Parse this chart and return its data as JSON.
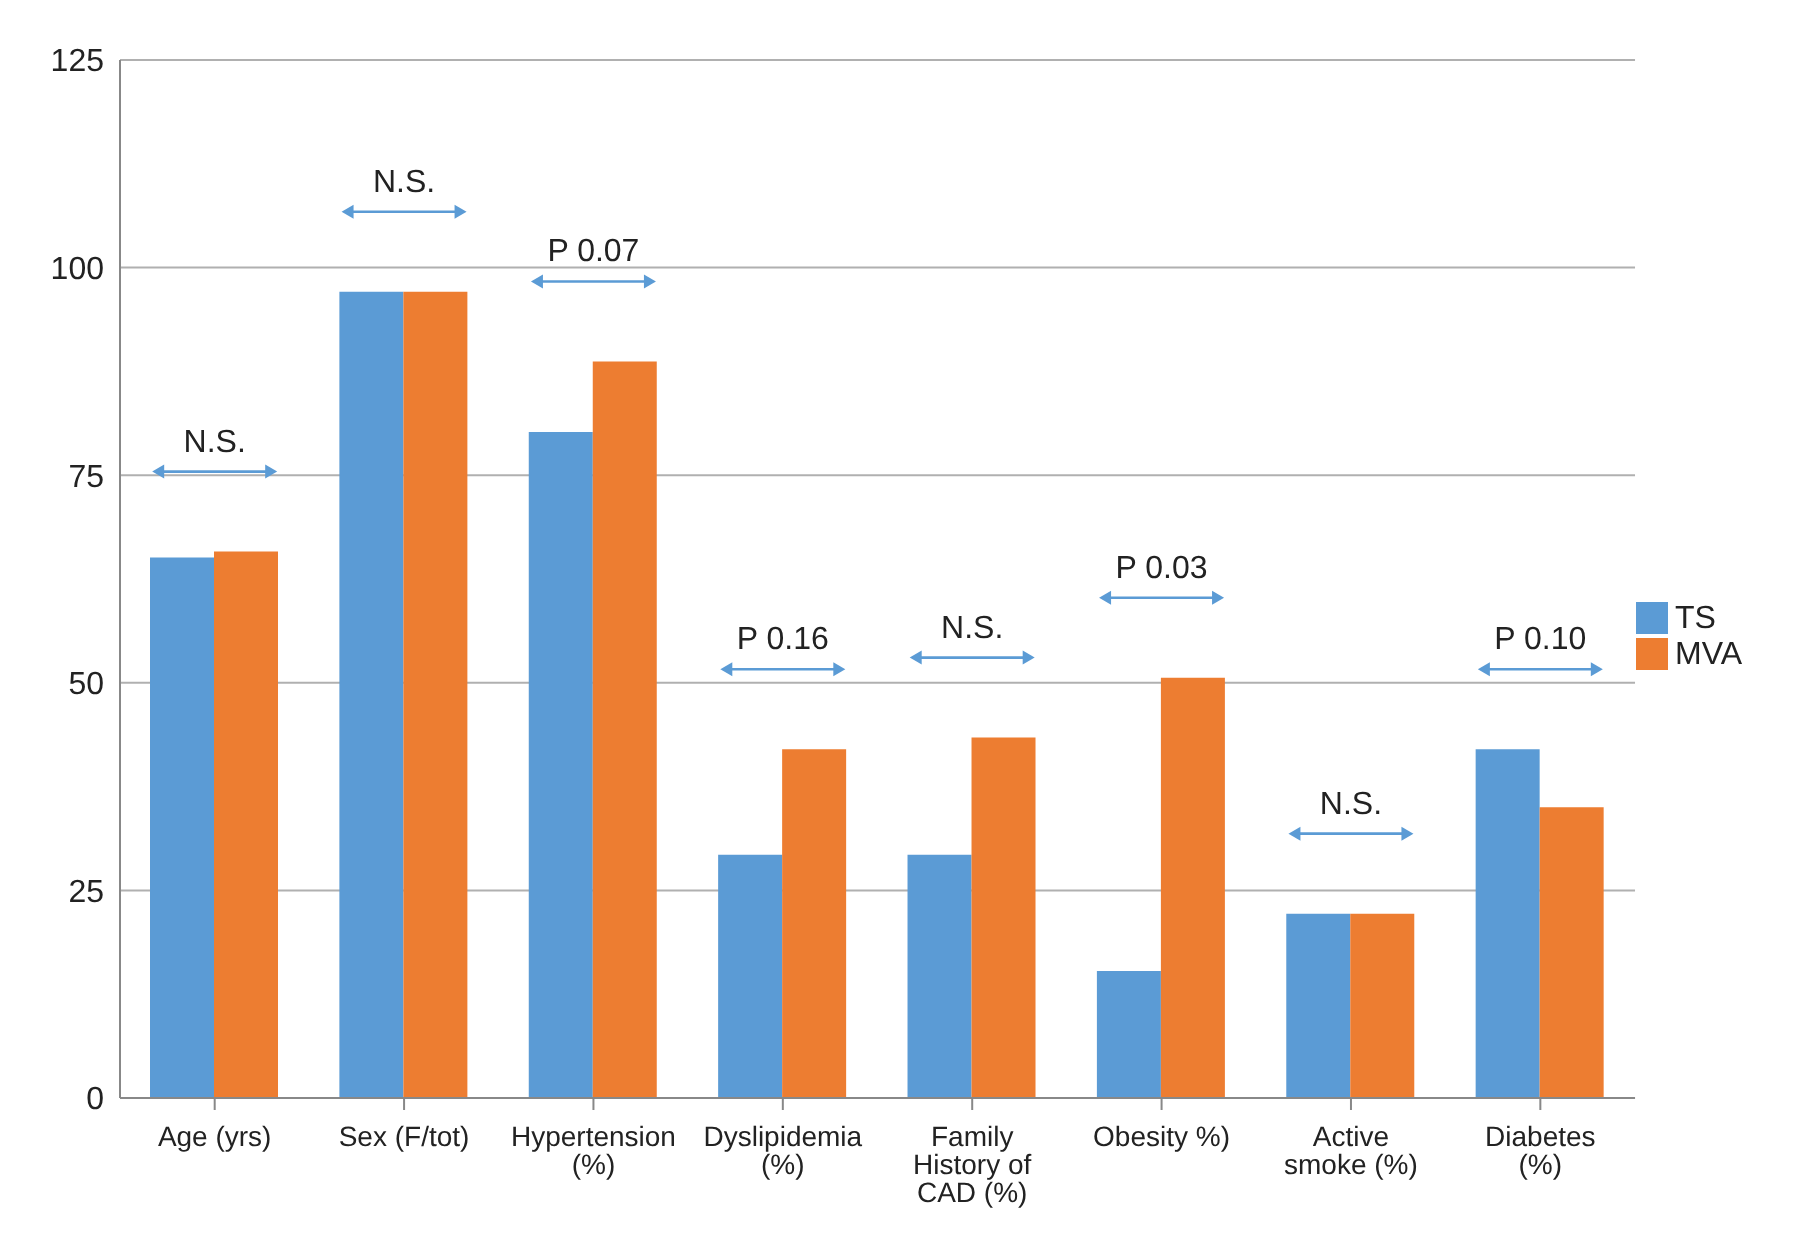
{
  "chart_data": {
    "type": "bar",
    "categories": [
      "Age (yrs)",
      "Sex (F/tot)",
      "Hypertension (%)",
      "Dyslipidemia (%)",
      "Family History of CAD (%)",
      "Obesity %)",
      "Active smoke (%)",
      "Diabetes (%)"
    ],
    "series": [
      {
        "name": "TS",
        "color": "#5b9bd5",
        "values": [
          65.1,
          97.1,
          80.2,
          29.3,
          29.3,
          15.3,
          22.2,
          42
        ]
      },
      {
        "name": "MVA",
        "color": "#ed7d31",
        "values": [
          65.8,
          97.1,
          88.7,
          42,
          43.4,
          50.6,
          22.2,
          35
        ]
      }
    ],
    "ylim": [
      0,
      125
    ],
    "yticks": [
      0,
      25,
      50,
      75,
      100,
      125
    ],
    "grid": "y",
    "legend": "right",
    "annotations": [
      "N.S.",
      "N.S.",
      "P 0.07",
      "P 0.16",
      "N.S.",
      "P 0.03",
      "N.S.",
      "P 0.10"
    ]
  }
}
